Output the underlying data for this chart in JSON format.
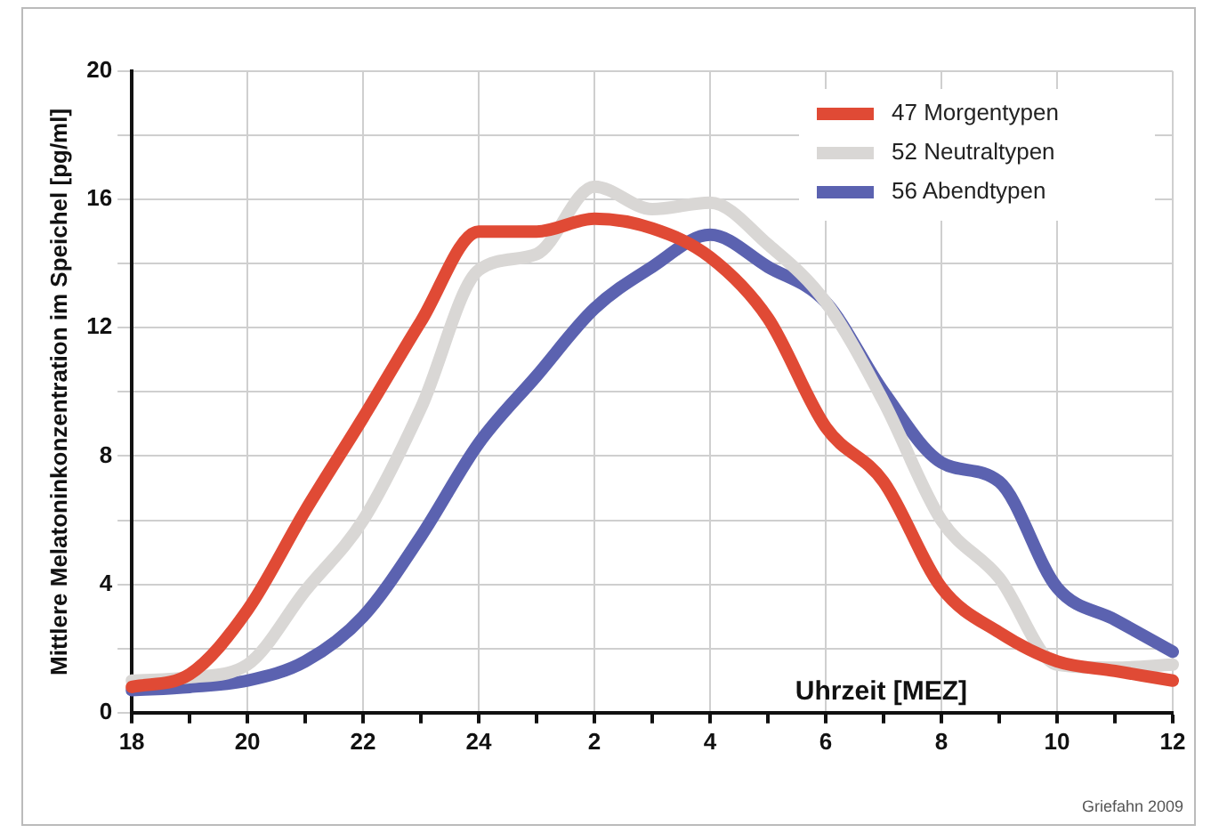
{
  "chart_data": {
    "type": "line",
    "xlabel": "Uhrzeit [MEZ]",
    "ylabel": "Mittlere Melatoninkonzentration im Speichel [pg/ml]",
    "categories": [
      "18",
      null,
      "20",
      null,
      "22",
      null,
      "24",
      null,
      "2",
      null,
      "4",
      null,
      "6",
      null,
      "8",
      null,
      "10",
      null,
      "12"
    ],
    "series": [
      {
        "name": "47 Morgentypen",
        "color": "#e04a35",
        "values": [
          0.8,
          1.2,
          3.2,
          6.3,
          9.2,
          12.2,
          15.0,
          15.0,
          15.4,
          15.1,
          14.2,
          12.3,
          8.9,
          7.2,
          3.9,
          2.5,
          1.6,
          1.3,
          1.0
        ]
      },
      {
        "name": "52 Neutraltypen",
        "color": "#d9d7d5",
        "values": [
          1.0,
          1.1,
          1.5,
          3.8,
          6.0,
          9.5,
          13.8,
          14.3,
          16.4,
          15.7,
          15.9,
          14.6,
          12.8,
          9.7,
          6.0,
          4.2,
          1.5,
          1.4,
          1.5
        ]
      },
      {
        "name": "56 Abendtypen",
        "color": "#5b62b0",
        "values": [
          0.7,
          0.8,
          1.0,
          1.6,
          3.0,
          5.5,
          8.4,
          10.5,
          12.6,
          13.9,
          14.9,
          13.9,
          12.8,
          10.0,
          7.8,
          7.2,
          3.9,
          2.9,
          1.9
        ]
      }
    ],
    "ylim": [
      0,
      20
    ],
    "yticks": [
      0,
      {
        "value": 2,
        "label": null
      },
      4,
      {
        "value": 6,
        "label": null
      },
      8,
      {
        "value": 10,
        "label": null
      },
      12,
      {
        "value": 14,
        "label": null
      },
      16,
      {
        "value": 18,
        "label": null
      },
      20
    ],
    "grid": true,
    "legend": "top right",
    "marker": "none",
    "line_style": "solid",
    "annotations": [
      "Griefahn 2009"
    ]
  }
}
